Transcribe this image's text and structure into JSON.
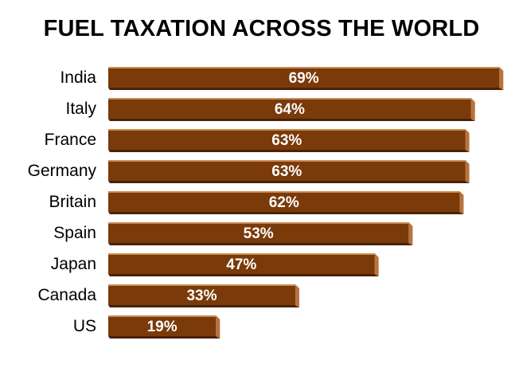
{
  "colors": {
    "bar_front": "#7a3a0a",
    "bar_top": "#c98a52",
    "bar_side": "#b8733e",
    "bar_shadow": "#4a2205",
    "label_text": "#ffffff"
  },
  "chart_data": {
    "type": "bar",
    "orientation": "horizontal",
    "title": "FUEL TAXATION ACROSS THE WORLD",
    "categories": [
      "India",
      "Italy",
      "France",
      "Germany",
      "Britain",
      "Spain",
      "Japan",
      "Canada",
      "US"
    ],
    "values": [
      69,
      64,
      63,
      63,
      62,
      53,
      47,
      33,
      19
    ],
    "data_labels": [
      "69%",
      "64%",
      "63%",
      "63%",
      "62%",
      "53%",
      "47%",
      "33%",
      "19%"
    ],
    "xlim": [
      0,
      69
    ],
    "grid": false,
    "legend": "none"
  }
}
